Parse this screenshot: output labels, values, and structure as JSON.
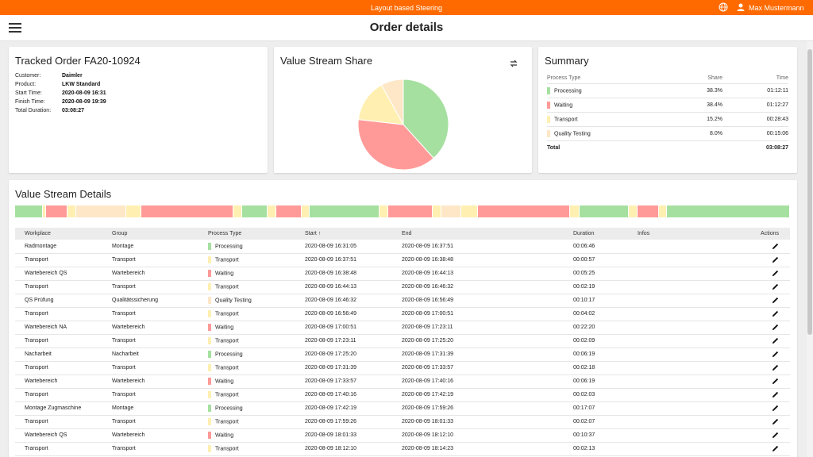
{
  "app": {
    "title": "Layout based Steering",
    "user_name": "Max Mustermann"
  },
  "header": {
    "page_title": "Order details"
  },
  "colors": {
    "Processing": "#a6e0a0",
    "Waiting": "#ff9a98",
    "Transport": "#fff0b2",
    "Quality Testing": "#fde7c7",
    "accent": "#ff6a00"
  },
  "order": {
    "title": "Tracked Order FA20-10924",
    "fields": [
      {
        "label": "Customer:",
        "value": "Daimler"
      },
      {
        "label": "Product:",
        "value": "LKW Standard"
      },
      {
        "label": "Start Time:",
        "value": "2020-08-09 16:31"
      },
      {
        "label": "Finish Time:",
        "value": "2020-08-09 19:39"
      },
      {
        "label": "Total Duration:",
        "value": "03:08:27"
      }
    ]
  },
  "value_stream_share": {
    "title": "Value Stream Share",
    "swap_icon": "swap-icon"
  },
  "chart_data": {
    "type": "pie",
    "title": "Value Stream Share",
    "categories": [
      "Processing",
      "Waiting",
      "Transport",
      "Quality Testing"
    ],
    "values": [
      38.3,
      38.4,
      15.2,
      8.0
    ]
  },
  "summary": {
    "title": "Summary",
    "headers": [
      "Process Type",
      "Share",
      "Time"
    ],
    "rows": [
      {
        "type": "Processing",
        "share": "38.3%",
        "time": "01:12:11"
      },
      {
        "type": "Waiting",
        "share": "38.4%",
        "time": "01:12:27"
      },
      {
        "type": "Transport",
        "share": "15.2%",
        "time": "00:28:43"
      },
      {
        "type": "Quality Testing",
        "share": "8.0%",
        "time": "00:15:06"
      }
    ],
    "total_label": "Total",
    "total_time": "03:08:27"
  },
  "details": {
    "title": "Value Stream Details",
    "headers": [
      "Workplace",
      "Group",
      "Process Type",
      "Start ↑",
      "End",
      "Duration",
      "Infos",
      "Actions"
    ],
    "rows": [
      {
        "workplace": "Radmontage",
        "group": "Montage",
        "type": "Processing",
        "start": "2020-08-09 16:31:05",
        "end": "2020-08-09 16:37:51",
        "duration": "00:06:46"
      },
      {
        "workplace": "Transport",
        "group": "Transport",
        "type": "Transport",
        "start": "2020-08-09 16:37:51",
        "end": "2020-08-09 16:38:48",
        "duration": "00:00:57"
      },
      {
        "workplace": "Wartebereich QS",
        "group": "Wartebereich",
        "type": "Waiting",
        "start": "2020-08-09 16:38:48",
        "end": "2020-08-09 16:44:13",
        "duration": "00:05:25"
      },
      {
        "workplace": "Transport",
        "group": "Transport",
        "type": "Transport",
        "start": "2020-08-09 16:44:13",
        "end": "2020-08-09 16:46:32",
        "duration": "00:02:19"
      },
      {
        "workplace": "QS Prüfung",
        "group": "Qualitätssicherung",
        "type": "Quality Testing",
        "start": "2020-08-09 16:46:32",
        "end": "2020-08-09 16:56:49",
        "duration": "00:10:17"
      },
      {
        "workplace": "Transport",
        "group": "Transport",
        "type": "Transport",
        "start": "2020-08-09 16:56:49",
        "end": "2020-08-09 17:00:51",
        "duration": "00:04:02"
      },
      {
        "workplace": "Wartebereich NA",
        "group": "Wartebereich",
        "type": "Waiting",
        "start": "2020-08-09 17:00:51",
        "end": "2020-08-09 17:23:11",
        "duration": "00:22:20"
      },
      {
        "workplace": "Transport",
        "group": "Transport",
        "type": "Transport",
        "start": "2020-08-09 17:23:11",
        "end": "2020-08-09 17:25:20",
        "duration": "00:02:09"
      },
      {
        "workplace": "Nacharbeit",
        "group": "Nacharbeit",
        "type": "Processing",
        "start": "2020-08-09 17:25:20",
        "end": "2020-08-09 17:31:39",
        "duration": "00:06:19"
      },
      {
        "workplace": "Transport",
        "group": "Transport",
        "type": "Transport",
        "start": "2020-08-09 17:31:39",
        "end": "2020-08-09 17:33:57",
        "duration": "00:02:18"
      },
      {
        "workplace": "Wartebereich",
        "group": "Wartebereich",
        "type": "Waiting",
        "start": "2020-08-09 17:33:57",
        "end": "2020-08-09 17:40:16",
        "duration": "00:06:19"
      },
      {
        "workplace": "Transport",
        "group": "Transport",
        "type": "Transport",
        "start": "2020-08-09 17:40:16",
        "end": "2020-08-09 17:42:19",
        "duration": "00:02:03"
      },
      {
        "workplace": "Montage Zugmaschine",
        "group": "Montage",
        "type": "Processing",
        "start": "2020-08-09 17:42:19",
        "end": "2020-08-09 17:59:26",
        "duration": "00:17:07"
      },
      {
        "workplace": "Transport",
        "group": "Transport",
        "type": "Transport",
        "start": "2020-08-09 17:59:26",
        "end": "2020-08-09 18:01:33",
        "duration": "00:02:07"
      },
      {
        "workplace": "Wartebereich QS",
        "group": "Wartebereich",
        "type": "Waiting",
        "start": "2020-08-09 18:01:33",
        "end": "2020-08-09 18:12:10",
        "duration": "00:10:37"
      },
      {
        "workplace": "Transport",
        "group": "Transport",
        "type": "Transport",
        "start": "2020-08-09 18:12:10",
        "end": "2020-08-09 18:14:23",
        "duration": "00:02:13"
      }
    ]
  },
  "timeline": [
    {
      "type": "Processing",
      "weight": 35
    },
    {
      "type": "Transport",
      "weight": 4
    },
    {
      "type": "Waiting",
      "weight": 27
    },
    {
      "type": "Transport",
      "weight": 11
    },
    {
      "type": "Quality Testing",
      "weight": 63
    },
    {
      "type": "Transport",
      "weight": 19
    },
    {
      "type": "Waiting",
      "weight": 115
    },
    {
      "type": "Transport",
      "weight": 11
    },
    {
      "type": "Processing",
      "weight": 32
    },
    {
      "type": "Transport",
      "weight": 11
    },
    {
      "type": "Waiting",
      "weight": 32
    },
    {
      "type": "Transport",
      "weight": 10
    },
    {
      "type": "Processing",
      "weight": 88
    },
    {
      "type": "Transport",
      "weight": 11
    },
    {
      "type": "Waiting",
      "weight": 55
    },
    {
      "type": "Transport",
      "weight": 11
    },
    {
      "type": "Quality Testing",
      "weight": 25
    },
    {
      "type": "Transport",
      "weight": 21
    },
    {
      "type": "Waiting",
      "weight": 116
    },
    {
      "type": "Transport",
      "weight": 12
    },
    {
      "type": "Processing",
      "weight": 62
    },
    {
      "type": "Transport",
      "weight": 11
    },
    {
      "type": "Waiting",
      "weight": 27
    },
    {
      "type": "Transport",
      "weight": 9
    },
    {
      "type": "Processing",
      "weight": 155
    }
  ]
}
